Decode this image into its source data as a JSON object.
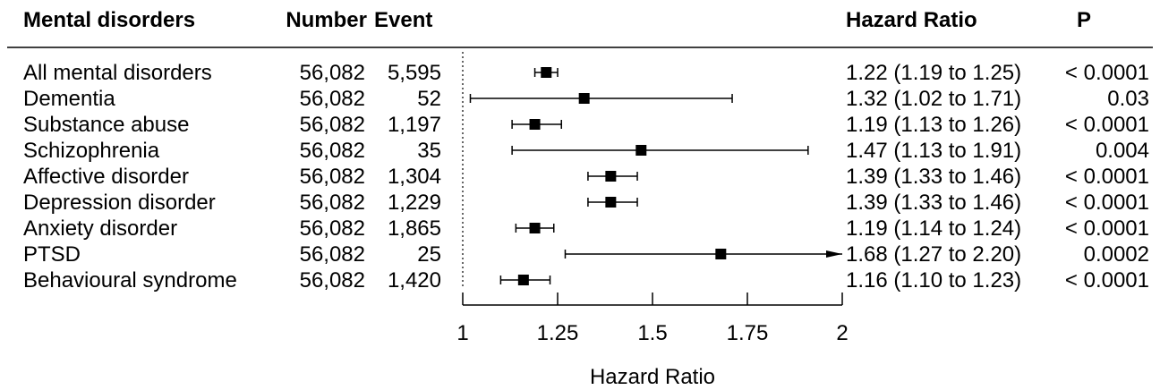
{
  "chart_data": {
    "type": "forest",
    "headers": {
      "label": "Mental disorders",
      "number": "Number",
      "event": "Event",
      "hr": "Hazard Ratio",
      "p": "P"
    },
    "rows": [
      {
        "label": "All mental disorders",
        "number": "56,082",
        "event": "5,595",
        "hr": 1.22,
        "lo": 1.19,
        "hi": 1.25,
        "ci_text": "1.22 (1.19 to 1.25)",
        "p": "< 0.0001",
        "arrow": false
      },
      {
        "label": "Dementia",
        "number": "56,082",
        "event": "52",
        "hr": 1.32,
        "lo": 1.02,
        "hi": 1.71,
        "ci_text": "1.32 (1.02 to 1.71)",
        "p": "0.03",
        "arrow": false
      },
      {
        "label": "Substance abuse",
        "number": "56,082",
        "event": "1,197",
        "hr": 1.19,
        "lo": 1.13,
        "hi": 1.26,
        "ci_text": "1.19 (1.13 to 1.26)",
        "p": "< 0.0001",
        "arrow": false
      },
      {
        "label": "Schizophrenia",
        "number": "56,082",
        "event": "35",
        "hr": 1.47,
        "lo": 1.13,
        "hi": 1.91,
        "ci_text": "1.47 (1.13 to 1.91)",
        "p": "0.004",
        "arrow": false
      },
      {
        "label": "Affective disorder",
        "number": "56,082",
        "event": "1,304",
        "hr": 1.39,
        "lo": 1.33,
        "hi": 1.46,
        "ci_text": "1.39 (1.33 to 1.46)",
        "p": "< 0.0001",
        "arrow": false
      },
      {
        "label": "Depression disorder",
        "number": "56,082",
        "event": "1,229",
        "hr": 1.39,
        "lo": 1.33,
        "hi": 1.46,
        "ci_text": "1.39 (1.33 to 1.46)",
        "p": "< 0.0001",
        "arrow": false
      },
      {
        "label": "Anxiety disorder",
        "number": "56,082",
        "event": "1,865",
        "hr": 1.19,
        "lo": 1.14,
        "hi": 1.24,
        "ci_text": "1.19 (1.14 to 1.24)",
        "p": "< 0.0001",
        "arrow": false
      },
      {
        "label": "PTSD",
        "number": "56,082",
        "event": "25",
        "hr": 1.68,
        "lo": 1.27,
        "hi": 2.2,
        "ci_text": "1.68 (1.27 to 2.20)",
        "p": "0.0002",
        "arrow": true
      },
      {
        "label": "Behavioural syndrome",
        "number": "56,082",
        "event": "1,420",
        "hr": 1.16,
        "lo": 1.1,
        "hi": 1.23,
        "ci_text": "1.16 (1.10 to 1.23)",
        "p": "< 0.0001",
        "arrow": false
      }
    ],
    "x_ticks": [
      1,
      1.25,
      1.5,
      1.75,
      2
    ],
    "x_tick_labels": [
      "1",
      "1.25",
      "1.5",
      "1.75",
      "2"
    ],
    "xlim": [
      1,
      2
    ],
    "xlabel": "Hazard Ratio",
    "reference_line": 1
  }
}
